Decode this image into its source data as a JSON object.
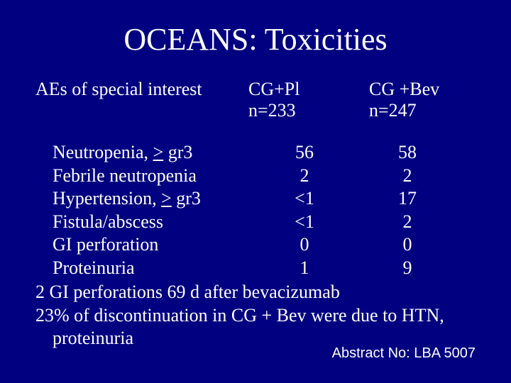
{
  "background_color": "#000080",
  "text_color": "#ffffff",
  "title": "OCEANS: Toxicities",
  "header": {
    "label": "AEs of special interest",
    "col1_line1": "CG+Pl",
    "col1_line2": "n=233",
    "col2_line1": "CG +Bev",
    "col2_line2": "n=247"
  },
  "rows": [
    {
      "ae_pre": "Neutropenia, ",
      "ae_u": ">",
      "ae_post": " gr3",
      "v1": "56",
      "v2": "58"
    },
    {
      "ae_pre": "Febrile neutropenia",
      "ae_u": "",
      "ae_post": "",
      "v1": "2",
      "v2": "2"
    },
    {
      "ae_pre": "Hypertension, ",
      "ae_u": ">",
      "ae_post": " gr3",
      "v1": "<1",
      "v2": "17"
    },
    {
      "ae_pre": "Fistula/abscess",
      "ae_u": "",
      "ae_post": "",
      "v1": "<1",
      "v2": "2"
    },
    {
      "ae_pre": "GI perforation",
      "ae_u": "",
      "ae_post": "",
      "v1": "0",
      "v2": "0"
    },
    {
      "ae_pre": "Proteinuria",
      "ae_u": "",
      "ae_post": "",
      "v1": "1",
      "v2": "9"
    }
  ],
  "notes": {
    "line1": "2 GI perforations 69 d after bevacizumab",
    "line2": "23% of discontinuation in CG + Bev were due to HTN,",
    "line2_cont": "proteinuria"
  },
  "footer": "Abstract No: LBA 5007"
}
